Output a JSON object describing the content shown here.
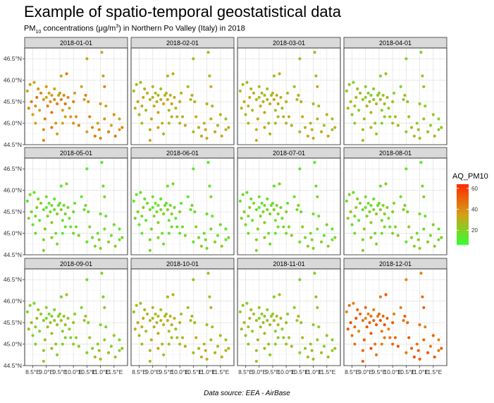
{
  "title": "Example of spatio-temporal geostatistical data",
  "subtitle": {
    "pre": "PM",
    "sub": "10",
    "mid": " concentrations (μg/m",
    "sup": "3",
    "post": ") in Northern Po Valley (Italy) in 2018"
  },
  "caption": "Data source: EEA - AirBase",
  "chart_data": {
    "type": "scatter",
    "facet_layout": {
      "rows": 3,
      "cols": 4
    },
    "facets": [
      "2018-01-01",
      "2018-02-01",
      "2018-03-01",
      "2018-04-01",
      "2018-05-01",
      "2018-06-01",
      "2018-07-01",
      "2018-08-01",
      "2018-09-01",
      "2018-10-01",
      "2018-11-01",
      "2018-12-01"
    ],
    "xlim": [
      8.2,
      12.0
    ],
    "ylim": [
      44.5,
      46.75
    ],
    "x_ticks": [
      8.5,
      9.0,
      9.5,
      10.0,
      10.5,
      11.0,
      11.5
    ],
    "x_tick_labels": [
      "8.5°E",
      "9.0°E",
      "9.5°E",
      "10.0°E",
      "10.5°E",
      "11.0°E",
      "11.5°E"
    ],
    "y_ticks": [
      44.5,
      45.0,
      45.5,
      46.0,
      46.5
    ],
    "y_tick_labels": [
      "44.5°N",
      "45.0°N",
      "45.5°N",
      "46.0°N",
      "46.5°N"
    ],
    "grid": true,
    "stations": [
      [
        8.3,
        45.75
      ],
      [
        8.4,
        45.9
      ],
      [
        8.35,
        45.35
      ],
      [
        8.55,
        45.95
      ],
      [
        8.7,
        45.8
      ],
      [
        8.45,
        45.5
      ],
      [
        8.5,
        45.2
      ],
      [
        8.6,
        45.4
      ],
      [
        8.65,
        45.6
      ],
      [
        8.6,
        45.0
      ],
      [
        8.8,
        45.7
      ],
      [
        8.75,
        45.3
      ],
      [
        8.9,
        45.55
      ],
      [
        8.95,
        45.1
      ],
      [
        9.0,
        45.6
      ],
      [
        9.0,
        45.85
      ],
      [
        9.05,
        45.4
      ],
      [
        9.1,
        45.7
      ],
      [
        9.15,
        45.5
      ],
      [
        9.2,
        45.25
      ],
      [
        9.2,
        45.65
      ],
      [
        9.3,
        45.55
      ],
      [
        9.3,
        45.8
      ],
      [
        9.35,
        45.0
      ],
      [
        9.4,
        45.45
      ],
      [
        9.45,
        45.65
      ],
      [
        9.5,
        45.7
      ],
      [
        9.55,
        45.55
      ],
      [
        9.6,
        45.3
      ],
      [
        9.65,
        45.65
      ],
      [
        9.7,
        45.45
      ],
      [
        9.7,
        45.15
      ],
      [
        9.8,
        45.6
      ],
      [
        9.85,
        45.35
      ],
      [
        9.9,
        45.15
      ],
      [
        10.0,
        45.5
      ],
      [
        10.05,
        45.7
      ],
      [
        10.1,
        45.15
      ],
      [
        9.75,
        46.15
      ],
      [
        9.55,
        46.1
      ],
      [
        8.9,
        44.85
      ],
      [
        9.2,
        44.9
      ],
      [
        9.4,
        44.75
      ],
      [
        8.9,
        44.6
      ],
      [
        10.5,
        46.5
      ],
      [
        10.4,
        45.55
      ],
      [
        10.45,
        45.65
      ],
      [
        10.3,
        45.85
      ],
      [
        10.55,
        45.5
      ],
      [
        10.6,
        45.15
      ],
      [
        10.5,
        44.8
      ],
      [
        10.7,
        44.9
      ],
      [
        10.8,
        44.7
      ],
      [
        10.9,
        45.0
      ],
      [
        11.0,
        44.65
      ],
      [
        11.05,
        46.65
      ],
      [
        11.1,
        46.1
      ],
      [
        11.15,
        45.85
      ],
      [
        11.2,
        45.4
      ],
      [
        11.15,
        45.1
      ],
      [
        11.3,
        44.8
      ],
      [
        11.4,
        44.95
      ],
      [
        11.5,
        45.2
      ],
      [
        11.55,
        44.7
      ],
      [
        11.7,
        44.85
      ],
      [
        11.8,
        44.9
      ],
      [
        11.7,
        45.1
      ],
      [
        11.0,
        45.45
      ],
      [
        10.95,
        44.85
      ],
      [
        9.6,
        45.0
      ],
      [
        10.0,
        45.0
      ],
      [
        10.2,
        44.95
      ]
    ],
    "monthly_level": [
      38,
      30,
      29,
      24,
      17,
      17,
      18,
      19,
      22,
      28,
      24,
      48
    ],
    "color_scale": {
      "title": "AQ_PM10",
      "domain": [
        6,
        64
      ],
      "ticks": [
        20,
        40,
        60
      ],
      "low_color": "#33ff33",
      "mid_color": "#d4a017",
      "high_color": "#ff2a00"
    }
  }
}
